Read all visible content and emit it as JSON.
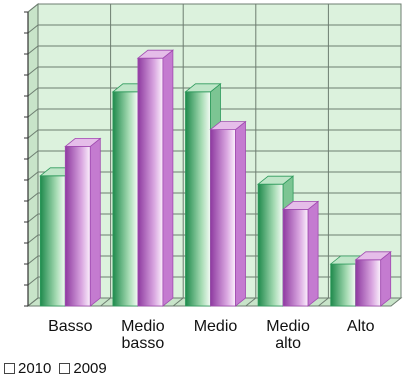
{
  "chart_data": {
    "type": "bar",
    "categories": [
      "Basso",
      "Medio basso",
      "Medio",
      "Medio alto",
      "Alto"
    ],
    "series": [
      {
        "name": "2010",
        "values": [
          31,
          51,
          51,
          29,
          10
        ]
      },
      {
        "name": "2009",
        "values": [
          38,
          59,
          42,
          23,
          11
        ]
      }
    ],
    "ylim": [
      0,
      70
    ],
    "grid": true,
    "legend_position": "bottom-left",
    "colors": {
      "2010": "#2e9a5c",
      "2009": "#a04ab0",
      "plot_background": "#dcf2dd",
      "grid": "#6d7d70"
    }
  }
}
